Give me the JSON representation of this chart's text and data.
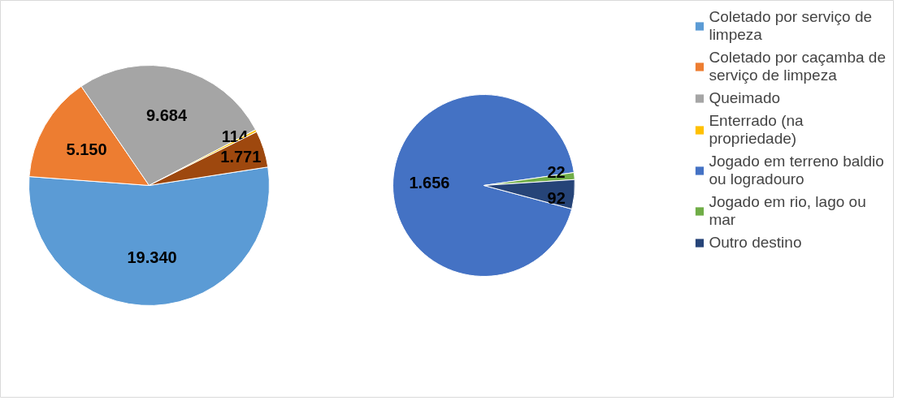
{
  "chart_data": [
    {
      "type": "pie",
      "categories": [
        "Coletado por serviço de limpeza",
        "Coletado por caçamba de serviço de limpeza",
        "Queimado",
        "Enterrado (na propriedade)",
        null
      ],
      "values": [
        19340,
        5150,
        9684,
        114,
        1771
      ],
      "colors": [
        "#5b9bd5",
        "#ed7d31",
        "#a5a5a5",
        "#ffc000",
        "#9e480e"
      ],
      "value_labels": [
        "19.340",
        "5.150",
        "9.684",
        "114",
        "1.771"
      ],
      "legend": "right"
    },
    {
      "type": "pie",
      "categories": [
        "Jogado em terreno baldio ou logradouro",
        "Jogado em rio, lago ou mar",
        "Outro destino"
      ],
      "values": [
        1656,
        22,
        92
      ],
      "colors": [
        "#4472c4",
        "#70ad47",
        "#264478"
      ],
      "value_labels": [
        "1.656",
        "22",
        "92"
      ],
      "legend": "right"
    }
  ]
}
